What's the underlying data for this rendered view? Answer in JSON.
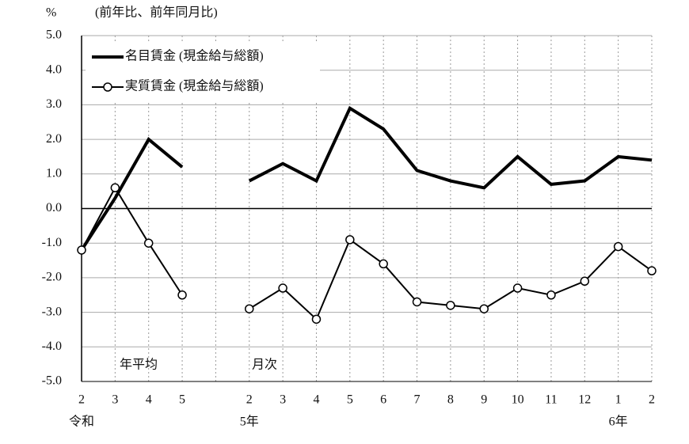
{
  "chart_data": {
    "type": "line",
    "y_unit": "%",
    "subtitle": "(前年比、前年同月比)",
    "categories": [
      "2",
      "3",
      "4",
      "5",
      null,
      "2",
      "3",
      "4",
      "5",
      "6",
      "7",
      "8",
      "9",
      "10",
      "11",
      "12",
      "1",
      "2"
    ],
    "series": [
      {
        "name": "名目賃金 (現金給与総額)",
        "color": "#000000",
        "marker": "none",
        "values": [
          -1.2,
          0.3,
          2.0,
          1.2,
          null,
          0.8,
          1.3,
          0.8,
          2.9,
          2.3,
          1.1,
          0.8,
          0.6,
          1.5,
          0.7,
          0.8,
          1.5,
          1.4
        ]
      },
      {
        "name": "実質賃金 (現金給与総額)",
        "color": "#000000",
        "marker": "circle",
        "values": [
          -1.2,
          0.6,
          -1.0,
          -2.5,
          null,
          -2.9,
          -2.3,
          -3.2,
          -0.9,
          -1.6,
          -2.7,
          -2.8,
          -2.9,
          -2.3,
          -2.5,
          -2.1,
          -1.1,
          -1.8
        ]
      }
    ],
    "ylim": [
      -5,
      5
    ],
    "yticks": [
      {
        "value": -5,
        "label": "-5.0"
      },
      {
        "value": -4,
        "label": "-4.0"
      },
      {
        "value": -3,
        "label": "-3.0"
      },
      {
        "value": -2,
        "label": "-2.0"
      },
      {
        "value": -1,
        "label": "-1.0"
      },
      {
        "value": 0,
        "label": "0.0"
      },
      {
        "value": 1,
        "label": "1.0"
      },
      {
        "value": 2,
        "label": "2.0"
      },
      {
        "value": 3,
        "label": "3.0"
      },
      {
        "value": 4,
        "label": "4.0"
      },
      {
        "value": 5,
        "label": "5.0"
      }
    ],
    "grid": true,
    "annotations": [
      "年平均",
      "月次"
    ],
    "x_era_labels": [
      "令和",
      "5年",
      "6年"
    ]
  }
}
